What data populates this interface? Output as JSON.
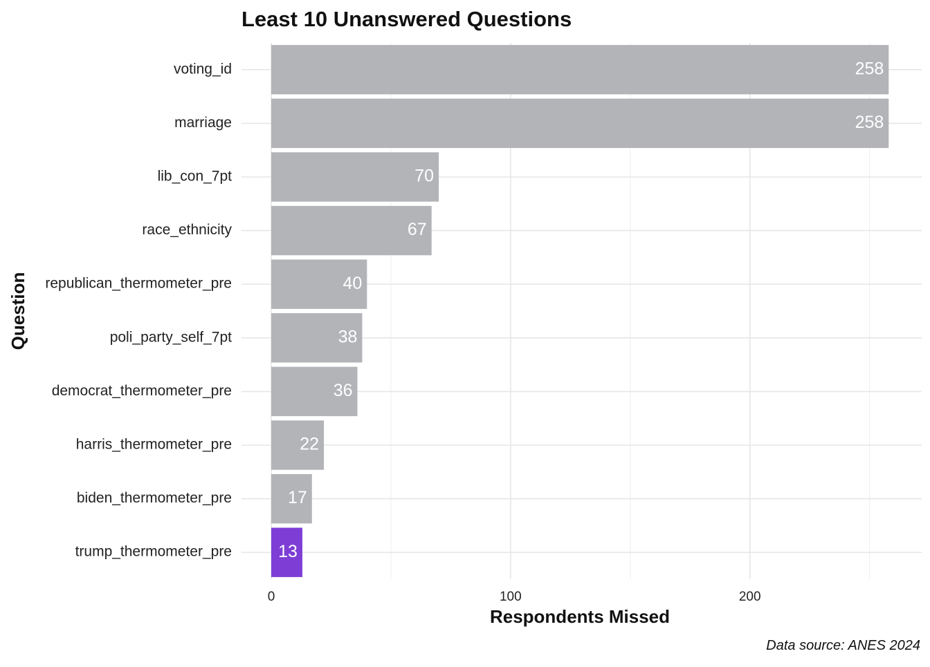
{
  "chart_data": {
    "type": "bar",
    "orientation": "horizontal",
    "title": "Least 10 Unanswered Questions",
    "xlabel": "Respondents Missed",
    "ylabel": "Question",
    "caption": "Data source: ANES 2024",
    "categories": [
      "voting_id",
      "marriage",
      "lib_con_7pt",
      "race_ethnicity",
      "republican_thermometer_pre",
      "poli_party_self_7pt",
      "democrat_thermometer_pre",
      "harris_thermometer_pre",
      "biden_thermometer_pre",
      "trump_thermometer_pre"
    ],
    "values": [
      258,
      258,
      70,
      67,
      40,
      38,
      36,
      22,
      17,
      13
    ],
    "highlight_category": "trump_thermometer_pre",
    "xlim": [
      0,
      270
    ],
    "x_ticks": [
      0,
      100,
      200
    ],
    "x_minor_ticks": [
      50,
      150,
      250
    ],
    "grid": true,
    "colors": {
      "bar": "#b3b4b8",
      "highlight": "#7e3ed6",
      "label": "#ffffff"
    }
  }
}
